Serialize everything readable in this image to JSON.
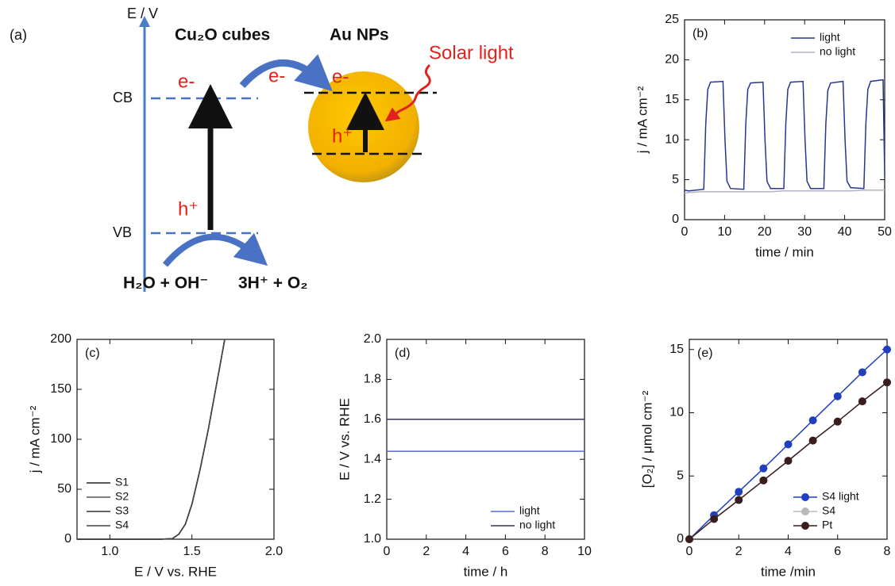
{
  "diagram": {
    "panel_label": "(a)",
    "axis_label": "E / V",
    "left_title": "Cu₂O cubes",
    "right_title": "Au NPs",
    "light_label": "Solar light",
    "cb": "CB",
    "vb": "VB",
    "e_left": "e-",
    "e_transfer": "e-",
    "e_right": "e-",
    "h_left": "h⁺",
    "h_right": "h⁺",
    "reactants": "H₂O + OH⁻",
    "products": "3H⁺ + O₂"
  },
  "chart_data": [
    {
      "type": "line",
      "label": "(b)",
      "x_label": "time / min",
      "y_label": "j / mA cm⁻²",
      "legend": "upper right",
      "x": [
        0,
        1,
        4.8,
        5.3,
        5.8,
        6.5,
        9.6,
        10.1,
        10.6,
        11.5,
        14.8,
        15.3,
        15.8,
        16.5,
        19.6,
        20.1,
        20.6,
        21.5,
        24.8,
        25.3,
        25.8,
        26.5,
        29.6,
        30.1,
        30.6,
        31.5,
        34.8,
        35.3,
        35.8,
        36.5,
        39.6,
        40.1,
        40.6,
        41.5,
        44.8,
        45.3,
        45.8,
        46.5,
        49.6,
        50
      ],
      "series": [
        {
          "name": "light",
          "color": "#283593",
          "values": [
            3.7,
            3.6,
            3.8,
            12,
            16.3,
            17.2,
            17.3,
            10,
            4.8,
            3.9,
            3.8,
            12,
            16.3,
            17.1,
            17.2,
            10,
            4.8,
            3.9,
            3.9,
            12,
            16.3,
            17.2,
            17.3,
            10,
            4.8,
            3.9,
            3.9,
            12,
            16.2,
            17.1,
            17.3,
            10,
            4.8,
            4.0,
            3.9,
            12,
            16.3,
            17.3,
            17.5,
            5.5
          ]
        },
        {
          "name": "no light",
          "color": "#b0b4c4",
          "values": [
            3.3,
            3.4,
            3.5,
            3.5,
            3.5,
            3.5,
            3.5,
            3.5,
            3.5,
            3.5,
            3.5,
            3.5,
            3.5,
            3.5,
            3.5,
            3.5,
            3.5,
            3.5,
            3.6,
            3.6,
            3.6,
            3.6,
            3.6,
            3.6,
            3.6,
            3.6,
            3.6,
            3.6,
            3.6,
            3.6,
            3.6,
            3.6,
            3.6,
            3.6,
            3.7,
            3.7,
            3.7,
            3.7,
            3.7,
            3.7
          ]
        }
      ],
      "xlim": [
        0,
        50
      ],
      "xticks": [
        0,
        10,
        20,
        30,
        40,
        50
      ],
      "ylim": [
        0,
        25
      ],
      "yticks": [
        0,
        5,
        10,
        15,
        20,
        25
      ]
    },
    {
      "type": "line",
      "label": "(c)",
      "x_label": "E / V vs. RHE",
      "y_label": "j / mA cm⁻²",
      "legend": "lower left",
      "x": [
        0.8,
        1.3,
        1.38,
        1.42,
        1.46,
        1.5,
        1.55,
        1.6,
        1.65,
        1.7
      ],
      "series": [
        {
          "name": "S1",
          "color": "#222222",
          "values": [
            0,
            0,
            0.5,
            5,
            15,
            35,
            70,
            110,
            155,
            200
          ]
        },
        {
          "name": "S2",
          "color": "#555555",
          "values": [
            0,
            0,
            0.5,
            5,
            15,
            35,
            70,
            110,
            155,
            200
          ]
        },
        {
          "name": "S3",
          "color": "#333333",
          "values": [
            0,
            0,
            0.5,
            5,
            15,
            35,
            70,
            110,
            155,
            200
          ]
        },
        {
          "name": "S4",
          "color": "#444444",
          "values": [
            0,
            0,
            0.5,
            5,
            15,
            35,
            70,
            110,
            155,
            200
          ]
        }
      ],
      "xlim": [
        0.8,
        2.0
      ],
      "xticks": [
        {
          "value": 1,
          "label": "1.0"
        },
        1.5,
        {
          "value": 2,
          "label": "2.0"
        }
      ],
      "ylim": [
        0,
        200
      ],
      "yticks": [
        0,
        50,
        100,
        150,
        200
      ]
    },
    {
      "type": "line",
      "label": "(d)",
      "x_label": "time / h",
      "y_label": "E / V vs. RHE",
      "legend": "lower right",
      "x": [
        0,
        10
      ],
      "series": [
        {
          "name": "light",
          "color": "#5a6ad0",
          "values": [
            1.44,
            1.44
          ]
        },
        {
          "name": "no light",
          "color": "#33365a",
          "values": [
            1.6,
            1.6
          ]
        }
      ],
      "xlim": [
        0,
        10
      ],
      "xticks": [
        0,
        2,
        4,
        6,
        8,
        10
      ],
      "ylim": [
        1,
        2
      ],
      "yticks": [
        {
          "value": 1,
          "label": "1.0"
        },
        1.2,
        1.4,
        1.6,
        1.8,
        {
          "value": 2,
          "label": "2.0"
        }
      ]
    },
    {
      "type": "line",
      "markers": true,
      "label": "(e)",
      "x_label": "time  /min",
      "y_label": "[O₂] / μmol cm⁻²",
      "legend": "lower right",
      "x": [
        0,
        1,
        2,
        3,
        4,
        5,
        6,
        7,
        8
      ],
      "series": [
        {
          "name": "S4 light",
          "color": "#1f3fbf",
          "values": [
            0,
            1.9,
            3.75,
            5.6,
            7.5,
            9.4,
            11.3,
            13.2,
            15.0
          ]
        },
        {
          "name": "S4",
          "color": "#b8b8b8",
          "values": [
            0,
            1.6,
            3.1,
            4.65,
            6.2,
            7.8,
            9.3,
            10.9,
            12.4
          ]
        },
        {
          "name": "Pt",
          "color": "#3a1e1e",
          "values": [
            0,
            1.6,
            3.1,
            4.65,
            6.2,
            7.8,
            9.3,
            10.9,
            12.4
          ]
        }
      ],
      "xlim": [
        0,
        8
      ],
      "xticks": [
        0,
        2,
        4,
        6,
        8
      ],
      "ylim": [
        0,
        15.8
      ],
      "yticks": [
        0,
        5,
        10,
        15
      ]
    }
  ]
}
